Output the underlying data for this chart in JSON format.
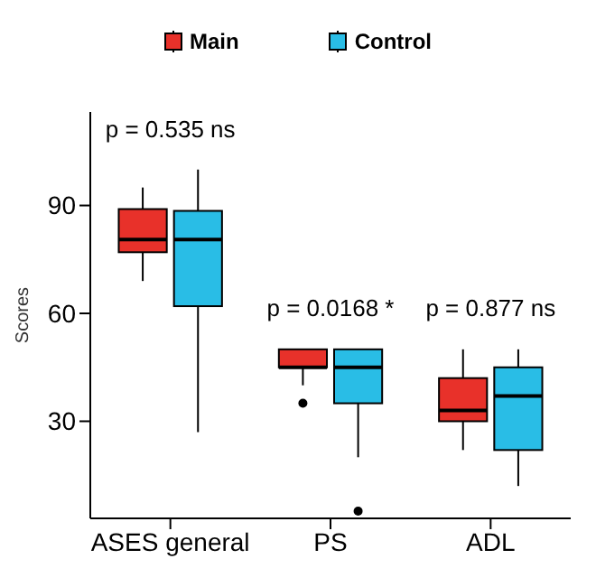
{
  "chart_data": {
    "type": "box",
    "ylabel": "Scores",
    "categories": [
      "ASES general",
      "PS",
      "ADL"
    ],
    "series": [
      {
        "name": "Main",
        "color": "#e8312a",
        "boxes": [
          {
            "low": 69,
            "q1": 77,
            "median": 80.5,
            "q3": 89,
            "high": 95
          },
          {
            "low": 40,
            "q1": 45,
            "median": 45,
            "q3": 50,
            "high": 50,
            "outliers": [
              35
            ]
          },
          {
            "low": 22,
            "q1": 30,
            "median": 33,
            "q3": 42,
            "high": 50
          }
        ]
      },
      {
        "name": "Control",
        "color": "#29bde6",
        "boxes": [
          {
            "low": 27,
            "q1": 62,
            "median": 80.5,
            "q3": 88.5,
            "high": 100
          },
          {
            "low": 20,
            "q1": 35,
            "median": 45,
            "q3": 50,
            "high": 50,
            "outliers": [
              5
            ]
          },
          {
            "low": 12,
            "q1": 22,
            "median": 37,
            "q3": 45,
            "high": 50
          }
        ]
      }
    ],
    "ylim": [
      3,
      116
    ],
    "yticks": [
      30,
      60,
      90
    ],
    "grid": false,
    "legend": "top",
    "annotations": [
      "p = 0.535 ns",
      "p = 0.0168 *",
      "p = 0.877 ns"
    ]
  }
}
